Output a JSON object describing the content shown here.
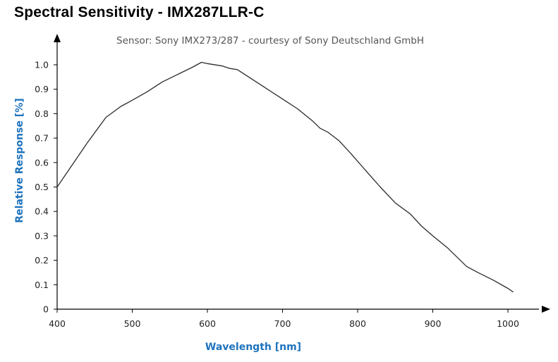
{
  "page": {
    "title": "Spectral Sensitivity - IMX287LLR-C"
  },
  "chart_data": {
    "type": "line",
    "title": "Spectral Sensitivity - IMX287LLR-C",
    "subtitle": "Sensor: Sony IMX273/287 - courtesy of Sony Deutschland GmbH",
    "xlabel": "Wavelength [nm]",
    "ylabel": "Relative Response [%]",
    "xlim": [
      400,
      1050
    ],
    "ylim": [
      0,
      1.08
    ],
    "xticks": [
      400,
      500,
      600,
      700,
      800,
      900,
      1000
    ],
    "yticks": [
      0,
      0.1,
      0.2,
      0.3,
      0.4,
      0.5,
      0.6,
      0.7,
      0.8,
      0.9,
      1.0
    ],
    "ytick_labels": [
      "0",
      "0.1",
      "0.2",
      "0.3",
      "0.4",
      "0.5",
      "0.6",
      "0.7",
      "0.8",
      "0.9",
      "1.0"
    ],
    "grid": false,
    "label_color": "#1e73be",
    "line_color": "#2b2b2b",
    "series": [
      {
        "x": [
          400,
          420,
          440,
          465,
          485,
          500,
          520,
          540,
          560,
          580,
          592,
          600,
          620,
          630,
          640,
          660,
          680,
          700,
          720,
          740,
          750,
          760,
          775,
          790,
          810,
          830,
          850,
          870,
          885,
          900,
          920,
          945,
          960,
          980,
          1000,
          1007
        ],
        "y": [
          0.5,
          0.59,
          0.68,
          0.785,
          0.83,
          0.855,
          0.89,
          0.93,
          0.96,
          0.99,
          1.01,
          1.005,
          0.995,
          0.985,
          0.98,
          0.94,
          0.9,
          0.86,
          0.82,
          0.77,
          0.74,
          0.725,
          0.69,
          0.64,
          0.57,
          0.5,
          0.435,
          0.39,
          0.34,
          0.3,
          0.25,
          0.175,
          0.15,
          0.12,
          0.085,
          0.07
        ]
      }
    ]
  }
}
